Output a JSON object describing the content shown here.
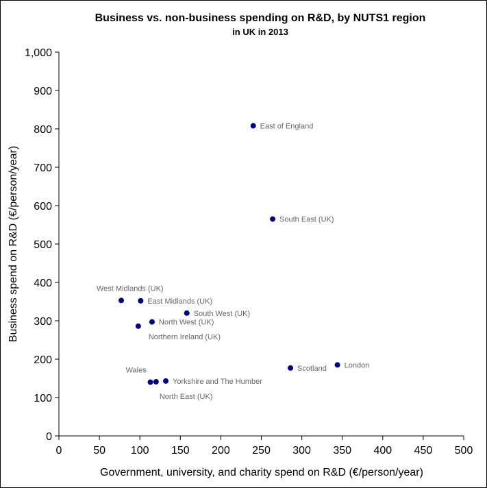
{
  "chart_data": {
    "type": "scatter",
    "title": "Business vs. non-business spending on R&D, by NUTS1 region",
    "subtitle": "in UK in 2013",
    "xlabel": "Government, university, and charity spend on R&D (€/person/year)",
    "ylabel": "Business spend on R&D (€/person/year)",
    "xlim": [
      0,
      500
    ],
    "ylim": [
      0,
      1000
    ],
    "xticks": [
      "0",
      "50",
      "100",
      "150",
      "200",
      "250",
      "300",
      "350",
      "400",
      "450",
      "500"
    ],
    "yticks": [
      "0",
      "100",
      "200",
      "300",
      "400",
      "500",
      "600",
      "700",
      "800",
      "900",
      "1,000"
    ],
    "grid": false,
    "marker_color": "#000080",
    "points": [
      {
        "label": "East of England",
        "x": 240,
        "y": 808,
        "label_pos": "right"
      },
      {
        "label": "South East (UK)",
        "x": 264,
        "y": 565,
        "label_pos": "right"
      },
      {
        "label": "West Midlands (UK)",
        "x": 77,
        "y": 353,
        "label_pos": "above"
      },
      {
        "label": "East Midlands (UK)",
        "x": 101,
        "y": 352,
        "label_pos": "right"
      },
      {
        "label": "South West (UK)",
        "x": 158,
        "y": 320,
        "label_pos": "right"
      },
      {
        "label": "North West (UK)",
        "x": 115,
        "y": 297,
        "label_pos": "right"
      },
      {
        "label": "Northern Ireland (UK)",
        "x": 98,
        "y": 286,
        "label_pos": "below-right"
      },
      {
        "label": "Scotland",
        "x": 286,
        "y": 177,
        "label_pos": "right"
      },
      {
        "label": "London",
        "x": 344,
        "y": 185,
        "label_pos": "right"
      },
      {
        "label": "Wales",
        "x": 113,
        "y": 140,
        "label_pos": "above"
      },
      {
        "label": "Yorkshire and The Humber",
        "x": 132,
        "y": 143,
        "label_pos": "right"
      },
      {
        "label": "North East (UK)",
        "x": 120,
        "y": 141,
        "label_pos": "below"
      }
    ]
  }
}
